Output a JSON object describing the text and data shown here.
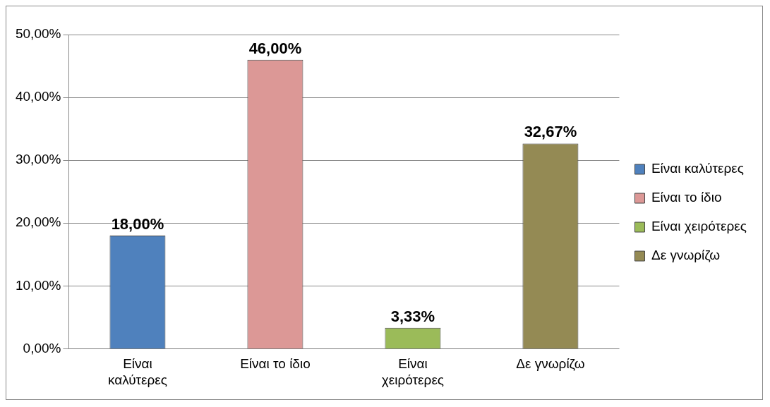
{
  "chart_data": {
    "type": "bar",
    "categories": [
      "Είναι καλύτερες",
      "Είναι το ίδιο",
      "Είναι χειρότερες",
      "Δε γνωρίζω"
    ],
    "series": [
      {
        "name": "Είναι καλύτερες",
        "color": "#4f81bd",
        "values": [
          18,
          null,
          null,
          null
        ],
        "value_labels": [
          "18,00%",
          null,
          null,
          null
        ]
      },
      {
        "name": "Είναι το ίδιο",
        "color": "#dc9896",
        "values": [
          null,
          46,
          null,
          null
        ],
        "value_labels": [
          null,
          "46,00%",
          null,
          null
        ]
      },
      {
        "name": "Είναι χειρότερες",
        "color": "#9bbb59",
        "values": [
          null,
          null,
          3.33,
          null
        ],
        "value_labels": [
          null,
          null,
          "3,33%",
          null
        ]
      },
      {
        "name": "Δε γνωρίζω",
        "color": "#948a54",
        "values": [
          null,
          null,
          null,
          32.67
        ],
        "value_labels": [
          null,
          null,
          null,
          "32,67%"
        ]
      }
    ],
    "ylim": [
      0,
      50
    ],
    "yticks": [
      {
        "value": 0,
        "label": "0,00%"
      },
      {
        "value": 10,
        "label": "10,00%"
      },
      {
        "value": 20,
        "label": "20,00%"
      },
      {
        "value": 30,
        "label": "30,00%"
      },
      {
        "value": 40,
        "label": "40,00%"
      },
      {
        "value": 50,
        "label": "50,00%"
      }
    ],
    "grid": "y",
    "legend": "right"
  }
}
